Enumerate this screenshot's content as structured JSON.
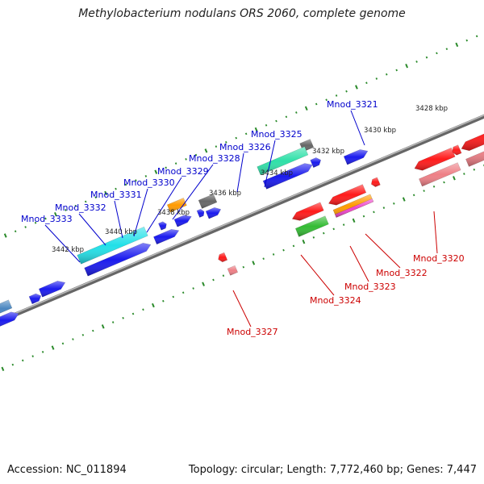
{
  "title": "Methylobacterium nodulans ORS 2060, complete genome",
  "accession": "Accession: NC_011894",
  "topology": "Topology: circular; Length: 7,772,460 bp; Genes: 7,447",
  "kbp_ticks": [
    "3428 kbp",
    "3430 kbp",
    "3432 kbp",
    "3434 kbp",
    "3436 kbp",
    "3438 kbp",
    "3440 kbp",
    "3442 kbp"
  ],
  "genes": [
    {
      "name": "Mnod_3321",
      "color": "#0000cc",
      "strand": "+"
    },
    {
      "name": "Mnod_3325",
      "color": "#0000cc",
      "strand": "+"
    },
    {
      "name": "Mnod_3326",
      "color": "#0000cc",
      "strand": "+"
    },
    {
      "name": "Mnod_3328",
      "color": "#0000cc",
      "strand": "+"
    },
    {
      "name": "Mnod_3329",
      "color": "#0000cc",
      "strand": "+"
    },
    {
      "name": "Mnod_3330",
      "color": "#0000cc",
      "strand": "+"
    },
    {
      "name": "Mnod_3331",
      "color": "#0000cc",
      "strand": "+"
    },
    {
      "name": "Mnod_3332",
      "color": "#0000cc",
      "strand": "+"
    },
    {
      "name": "Mnod_3333",
      "color": "#0000cc",
      "strand": "+"
    },
    {
      "name": "Mnod_3320",
      "color": "#cc0000",
      "strand": "-"
    },
    {
      "name": "Mnod_3322",
      "color": "#cc0000",
      "strand": "-"
    },
    {
      "name": "Mnod_3323",
      "color": "#cc0000",
      "strand": "-"
    },
    {
      "name": "Mnod_3324",
      "color": "#cc0000",
      "strand": "-"
    },
    {
      "name": "Mnod_3327",
      "color": "#cc0000",
      "strand": "-"
    }
  ],
  "colors": {
    "blue": "#1a1aee",
    "cyan": "#22e0e8",
    "teal": "#2fe0a8",
    "orange": "#ff9a00",
    "grey": "#666666",
    "red": "#ff1a1a",
    "pink": "#ee7f86",
    "green": "#33bb33",
    "steel": "#4a86c0",
    "magenta": "#ee44cc",
    "dots": "#2a8a2a",
    "axis": "#888888",
    "label_pos": "#0000cc",
    "label_neg": "#cc0000"
  }
}
